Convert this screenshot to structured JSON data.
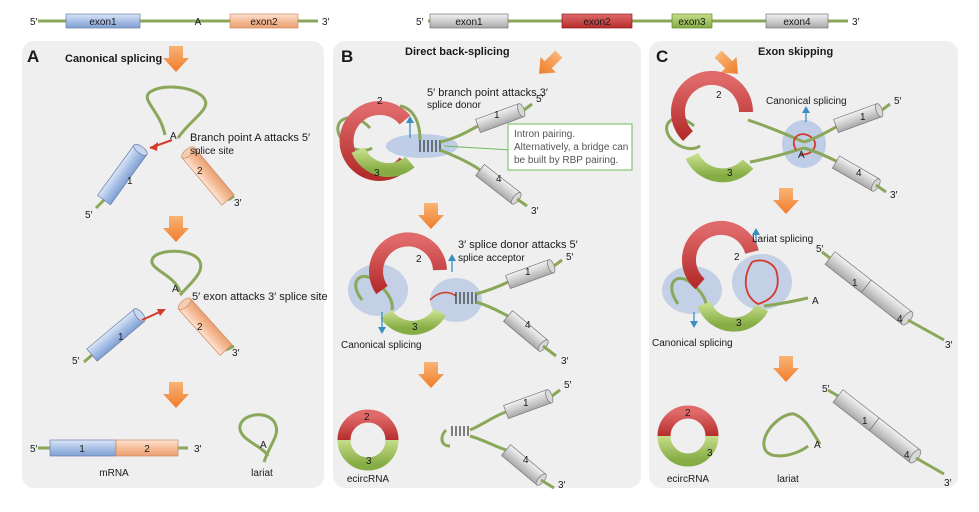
{
  "top_left_gene": {
    "five": "5′",
    "three": "3′",
    "exon1": "exon1",
    "branch": "A",
    "exon2": "exon2"
  },
  "top_right_gene": {
    "five": "5′",
    "three": "3′",
    "exon1": "exon1",
    "exon2": "exon2",
    "exon3": "exon3",
    "exon4": "exon4"
  },
  "panel_a": {
    "letter": "A",
    "title": "Canonical splicing",
    "step1_label_line1": "Branch point A attacks 5′",
    "step1_label_line2": "splice site",
    "step1_branch": "A",
    "step1_exon1": "1",
    "step1_exon2": "2",
    "step1_five": "5′",
    "step1_three": "3′",
    "step2_label": "5′  exon attacks 3′  splice site",
    "step2_branch": "A",
    "step2_exon1": "1",
    "step2_exon2": "2",
    "step2_five": "5′",
    "step2_three": "3′",
    "mrna_five": "5′",
    "mrna_exon1": "1",
    "mrna_exon2": "2",
    "mrna_three": "3′",
    "mrna_label": "mRNA",
    "lariat_branch": "A",
    "lariat_label": "lariat"
  },
  "panel_b": {
    "letter": "B",
    "title": "Direct back-splicing",
    "step1_label_line1": "5′  branch point attacks 3′",
    "step1_label_line2": "splice donor",
    "step1_five": "5′",
    "step1_three": "3′",
    "exon1": "1",
    "exon2": "2",
    "exon3": "3",
    "exon4": "4",
    "note_line1": "Intron pairing.",
    "note_line2": "Alternatively, a bridge can",
    "note_line3": "be built by RBP pairing.",
    "step2_label_line1": "3′ splice donor attacks 5′",
    "step2_label_line2": "splice acceptor",
    "step2_canonical": "Canonical splicing",
    "step2_five": "5′",
    "step2_three": "3′",
    "ecirc_label": "ecircRNA",
    "step3_five": "5′",
    "step3_three": "3′"
  },
  "panel_c": {
    "letter": "C",
    "title": "Exon skipping",
    "step1_canonical": "Canonical splicing",
    "step1_branch": "A",
    "step1_five": "5′",
    "step1_three": "3′",
    "exon1": "1",
    "exon2": "2",
    "exon3": "3",
    "exon4": "4",
    "step2_lariat": "Lariat splicing",
    "step2_canonical": "Canonical splicing",
    "step2_branch": "A",
    "step2_five": "5′",
    "step2_three": "3′",
    "ecirc_label": "ecircRNA",
    "lariat_branch": "A",
    "lariat_label": "lariat",
    "step3_five": "5′",
    "step3_three": "3′"
  }
}
